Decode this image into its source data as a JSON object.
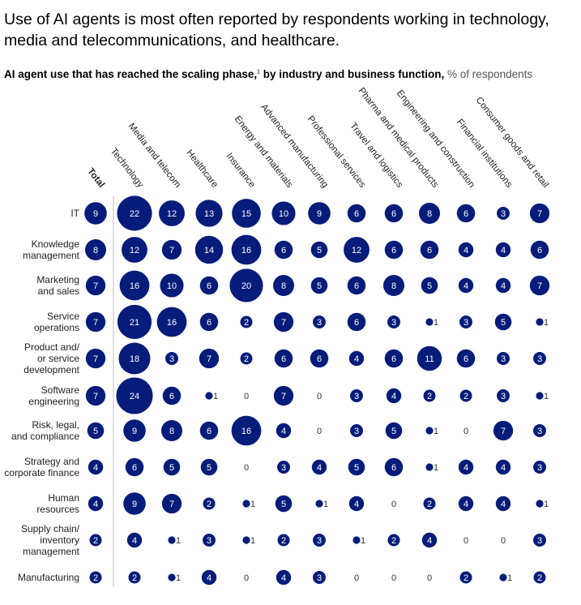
{
  "title": "Use of AI agents is most often reported by respondents working in technology, media and telecommunications, and healthcare.",
  "subtitle": {
    "main": "AI agent use that has reached the scaling phase,",
    "footnote": "1",
    "rest": " by industry and business function,",
    "unit": " % of respondents"
  },
  "colors": {
    "bubble": "#051c7a",
    "label_inside": "#ffffff",
    "text": "#222222"
  },
  "chart_data": {
    "type": "bubble-matrix",
    "columns": [
      "Total",
      "Technology",
      "Media and telecom",
      "Healthcare",
      "Insurance",
      "Energy and materials",
      "Advanced manufacturing",
      "Professional services",
      "Travel and logistics",
      "Pharma and medical products",
      "Engineering and construction",
      "Financial institutions",
      "Consumer goods and retail"
    ],
    "rows": [
      {
        "label": [
          "IT"
        ],
        "values": [
          9,
          22,
          12,
          13,
          15,
          10,
          9,
          6,
          6,
          8,
          6,
          3,
          7
        ]
      },
      {
        "label": [
          "Knowledge",
          "management"
        ],
        "values": [
          8,
          12,
          7,
          14,
          16,
          6,
          5,
          12,
          6,
          6,
          4,
          4,
          6
        ]
      },
      {
        "label": [
          "Marketing",
          "and sales"
        ],
        "values": [
          7,
          16,
          10,
          6,
          20,
          8,
          5,
          6,
          8,
          5,
          4,
          4,
          7
        ]
      },
      {
        "label": [
          "Service",
          "operations"
        ],
        "values": [
          7,
          21,
          16,
          6,
          2,
          7,
          3,
          6,
          3,
          1,
          3,
          5,
          1
        ]
      },
      {
        "label": [
          "Product and/",
          "or service",
          "development"
        ],
        "values": [
          7,
          18,
          3,
          7,
          2,
          6,
          6,
          4,
          6,
          11,
          6,
          3,
          3
        ]
      },
      {
        "label": [
          "Software",
          "engineering"
        ],
        "values": [
          7,
          24,
          6,
          1,
          0,
          7,
          0,
          3,
          4,
          2,
          2,
          3,
          1
        ]
      },
      {
        "label": [
          "Risk, legal,",
          "and compliance"
        ],
        "values": [
          5,
          9,
          8,
          6,
          16,
          4,
          0,
          3,
          5,
          1,
          0,
          7,
          3
        ]
      },
      {
        "label": [
          "Strategy and",
          "corporate finance"
        ],
        "values": [
          4,
          6,
          5,
          5,
          0,
          3,
          4,
          5,
          6,
          1,
          4,
          4,
          3
        ]
      },
      {
        "label": [
          "Human",
          "resources"
        ],
        "values": [
          4,
          9,
          7,
          2,
          1,
          5,
          1,
          4,
          0,
          2,
          4,
          4,
          1
        ]
      },
      {
        "label": [
          "Supply chain/",
          "inventory",
          "management"
        ],
        "values": [
          2,
          4,
          1,
          3,
          1,
          2,
          3,
          1,
          2,
          4,
          0,
          0,
          3
        ]
      },
      {
        "label": [
          "Manufacturing"
        ],
        "values": [
          2,
          2,
          1,
          4,
          0,
          4,
          3,
          0,
          0,
          0,
          2,
          1,
          2
        ]
      }
    ]
  }
}
